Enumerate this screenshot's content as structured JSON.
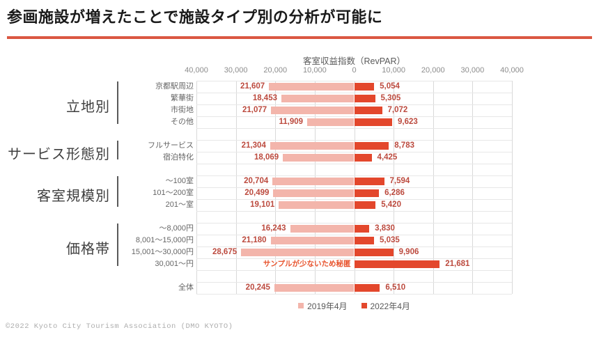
{
  "page": {
    "title": "参画施設が増えたことで施設タイプ別の分析が可能に",
    "footer": "©2022 Kyoto City Tourism Association (DMO KYOTO)"
  },
  "colors": {
    "accent_line": "#da5742",
    "series_2019": "#f3b5ab",
    "series_2022": "#e3472c",
    "value_label": "#bc4a3e",
    "hidden_note": "#e8542e",
    "gridline_v": "#d9d9d9",
    "gridline_h": "#e7e7e7"
  },
  "chart_data": {
    "type": "bar",
    "variant": "diverging-horizontal",
    "title": "客室収益指数（RevPAR）",
    "axis": {
      "max": 40000,
      "tick_step": 10000,
      "tick_labels": [
        "40,000",
        "30,000",
        "20,000",
        "10,000",
        "0",
        "10,000",
        "20,000",
        "30,000",
        "40,000"
      ]
    },
    "legend": [
      {
        "name": "2019年4月"
      },
      {
        "name": "2022年4月"
      }
    ],
    "series_names": [
      "2019年4月",
      "2022年4月"
    ],
    "hidden_note": "サンプルが少ないため秘匿",
    "groups": [
      {
        "label": "立地別",
        "rows": [
          {
            "category": "京都駅周辺",
            "v2019": 21607,
            "v2022": 5054
          },
          {
            "category": "繁華街",
            "v2019": 18453,
            "v2022": 5305
          },
          {
            "category": "市街地",
            "v2019": 21077,
            "v2022": 7072
          },
          {
            "category": "その他",
            "v2019": 11909,
            "v2022": 9623
          }
        ]
      },
      {
        "label": "サービス形態別",
        "rows": [
          {
            "category": "フルサービス",
            "v2019": 21304,
            "v2022": 8783
          },
          {
            "category": "宿泊特化",
            "v2019": 18069,
            "v2022": 4425
          }
        ]
      },
      {
        "label": "客室規模別",
        "rows": [
          {
            "category": "～100室",
            "v2019": 20704,
            "v2022": 7594
          },
          {
            "category": "101～200室",
            "v2019": 20499,
            "v2022": 6286
          },
          {
            "category": "201～室",
            "v2019": 19101,
            "v2022": 5420
          }
        ]
      },
      {
        "label": "価格帯",
        "rows": [
          {
            "category": "～8,000円",
            "v2019": 16243,
            "v2022": 3830
          },
          {
            "category": "8,001～15,000円",
            "v2019": 21180,
            "v2022": 5035
          },
          {
            "category": "15,001～30,000円",
            "v2019": 28675,
            "v2022": 9906
          },
          {
            "category": "30,001～円",
            "v2019": null,
            "v2019_hidden": true,
            "v2022": 21681
          }
        ]
      },
      {
        "label": "",
        "rows": [
          {
            "category": "全体",
            "v2019": 20245,
            "v2022": 6510
          }
        ]
      }
    ]
  }
}
